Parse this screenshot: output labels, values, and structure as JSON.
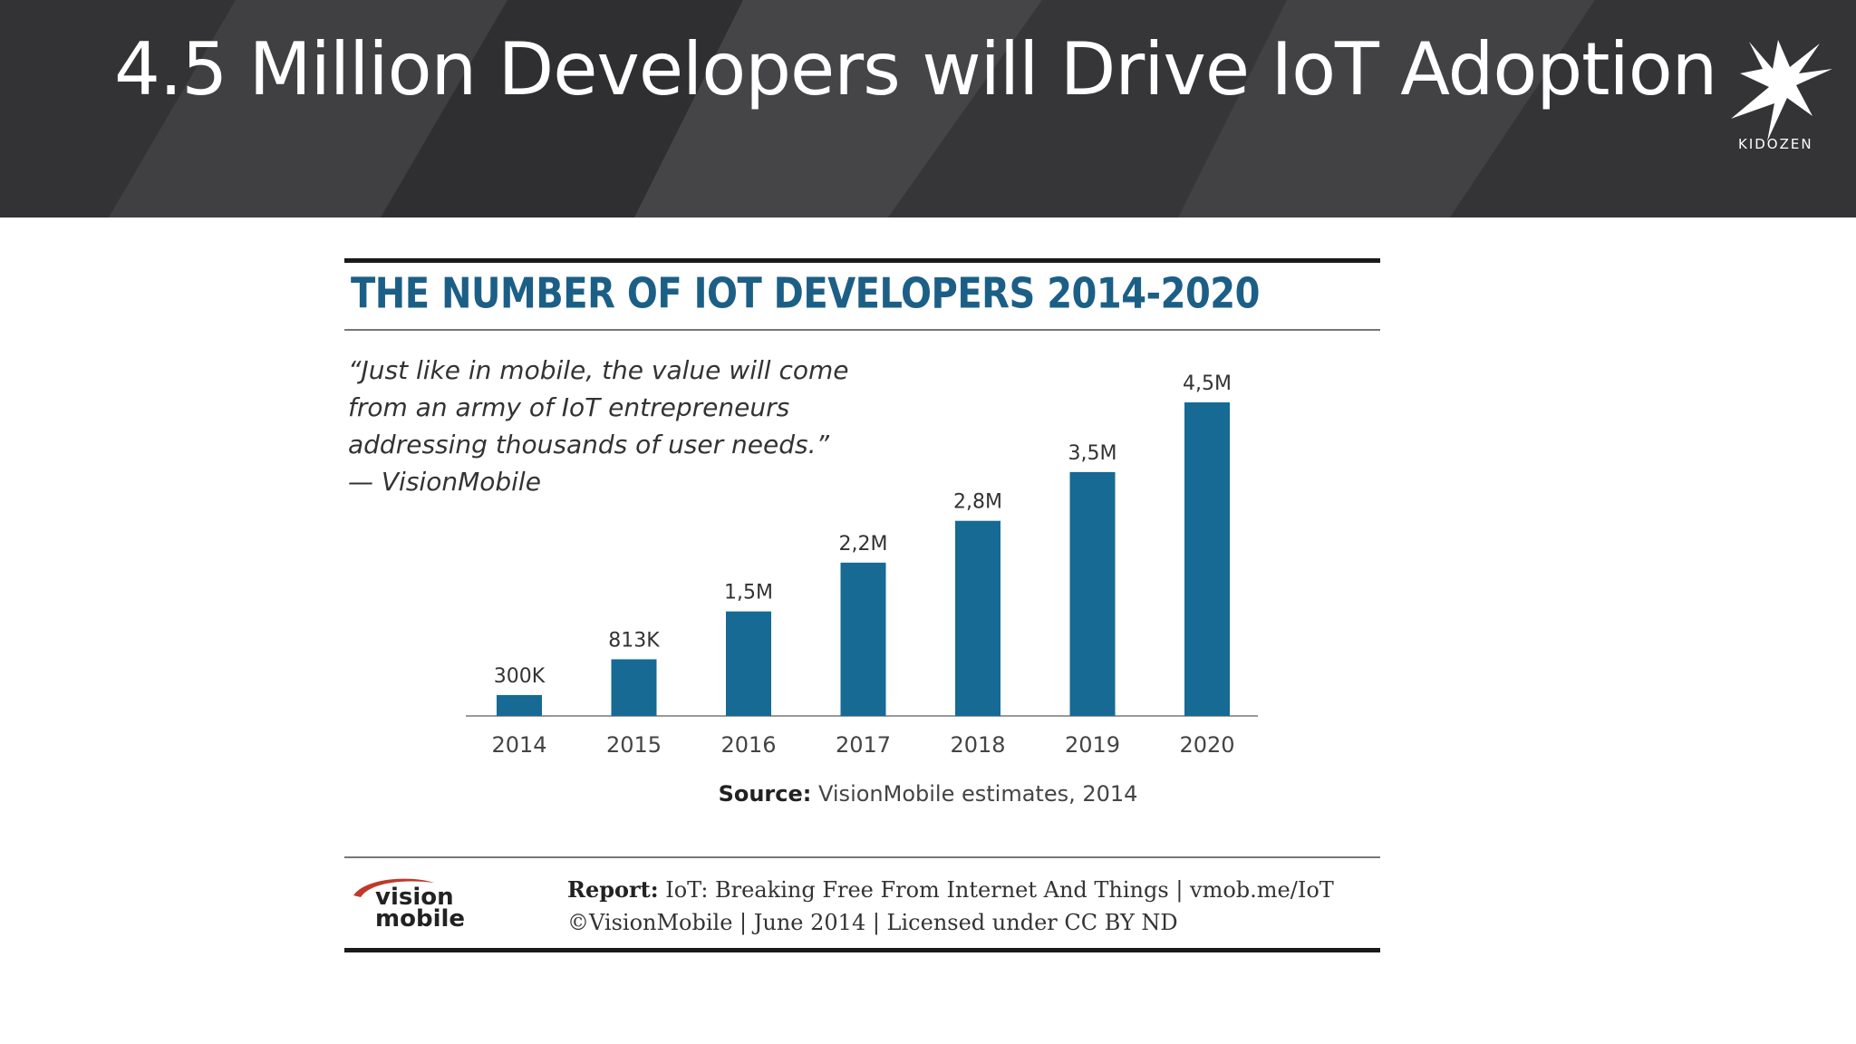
{
  "slide": {
    "title": "4.5 Million Developers will Drive IoT Adoption",
    "logo_text": "KIDOZEN",
    "logo_icon": "kidozen-bird-logo"
  },
  "chart_data": {
    "type": "bar",
    "title": "THE NUMBER OF IOT DEVELOPERS 2014-2020",
    "categories": [
      "2014",
      "2015",
      "2016",
      "2017",
      "2018",
      "2019",
      "2020"
    ],
    "values": [
      300000,
      813000,
      1500000,
      2200000,
      2800000,
      3500000,
      4500000
    ],
    "data_labels": [
      "300K",
      "813K",
      "1,5M",
      "2,2M",
      "2,8M",
      "3,5M",
      "4,5M"
    ],
    "xlabel": "",
    "ylabel": "",
    "ylim": [
      0,
      4500000
    ],
    "grid": false,
    "bar_color": "#166a94"
  },
  "quote": {
    "lines": [
      "“Just like in mobile, the value will come",
      "from an army of IoT entrepreneurs",
      "addressing thousands of user needs.”",
      "— VisionMobile"
    ]
  },
  "source": {
    "label": "Source:",
    "text": "VisionMobile estimates, 2014"
  },
  "footer": {
    "report_label": "Report:",
    "report_text": "IoT: Breaking Free From Internet And Things | vmob.me/IoT",
    "copyright": "©VisionMobile | June 2014 | Licensed under CC BY ND",
    "logo_line1": "vision",
    "logo_line2": "mobile"
  },
  "colors": {
    "banner": "#3a3a3c",
    "title_blue": "#1c5f86",
    "bar": "#166a94"
  }
}
